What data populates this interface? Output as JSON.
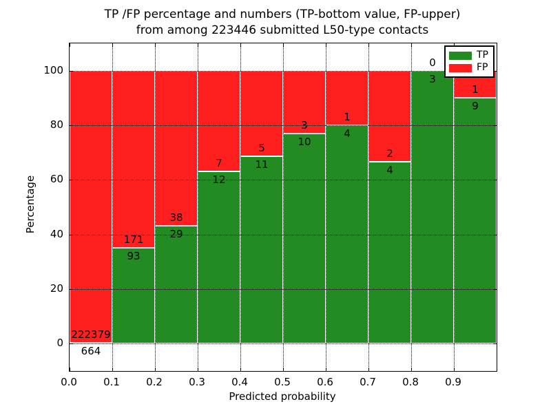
{
  "chart_data": {
    "type": "bar",
    "variant": "stacked-percentage-histogram",
    "title_line1": "TP /FP percentage and numbers (TP-bottom value, FP-upper)",
    "title_line2": "from among 223446 submitted L50-type contacts",
    "xlabel": "Predicted probability",
    "ylabel": "Percentage",
    "x_tick_labels": [
      "0.0",
      "0.1",
      "0.2",
      "0.3",
      "0.4",
      "0.5",
      "0.6",
      "0.7",
      "0.8",
      "0.9"
    ],
    "y_tick_values": [
      0,
      20,
      40,
      60,
      80,
      100
    ],
    "xlim": [
      0.0,
      1.0
    ],
    "ylim": [
      -10,
      110
    ],
    "grid": "dotted",
    "colors": {
      "tp": "#228b22",
      "fp": "#ff1f1f"
    },
    "legend": {
      "position": "upper-right",
      "entries": [
        {
          "label": "TP",
          "color": "#228b22"
        },
        {
          "label": "FP",
          "color": "#ff1f1f"
        }
      ]
    },
    "bins": [
      {
        "x_range": [
          0.0,
          0.1
        ],
        "tp": 664,
        "fp": 222379
      },
      {
        "x_range": [
          0.1,
          0.2
        ],
        "tp": 93,
        "fp": 171
      },
      {
        "x_range": [
          0.2,
          0.3
        ],
        "tp": 29,
        "fp": 38
      },
      {
        "x_range": [
          0.3,
          0.4
        ],
        "tp": 12,
        "fp": 7
      },
      {
        "x_range": [
          0.4,
          0.5
        ],
        "tp": 11,
        "fp": 5
      },
      {
        "x_range": [
          0.5,
          0.6
        ],
        "tp": 10,
        "fp": 3
      },
      {
        "x_range": [
          0.6,
          0.7
        ],
        "tp": 4,
        "fp": 1
      },
      {
        "x_range": [
          0.7,
          0.8
        ],
        "tp": 4,
        "fp": 2
      },
      {
        "x_range": [
          0.8,
          0.9
        ],
        "tp": 3,
        "fp": 0
      },
      {
        "x_range": [
          0.9,
          1.0
        ],
        "tp": 9,
        "fp": 1
      }
    ]
  }
}
